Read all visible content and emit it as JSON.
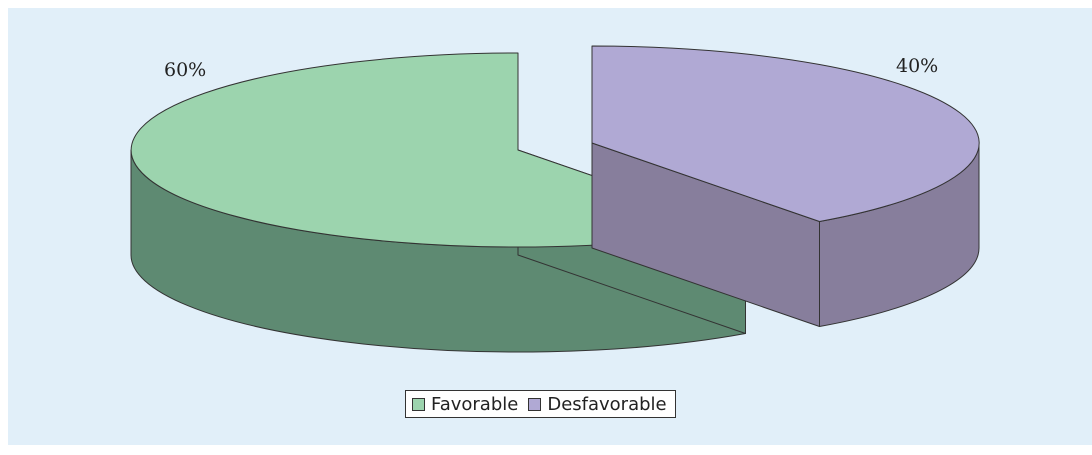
{
  "chart_data": {
    "type": "pie",
    "style": "3d-exploded",
    "categories": [
      "Favorable",
      "Desfavorable"
    ],
    "values": [
      60,
      40
    ],
    "data_labels": [
      "60%",
      "40%"
    ],
    "colors": {
      "Favorable": {
        "top": "#9cd4ae",
        "side": "#5e8a72"
      },
      "Desfavorable": {
        "top": "#b0a9d4",
        "side": "#877e9c"
      }
    },
    "background": "#e1eff9",
    "legend": {
      "position": "bottom",
      "items": [
        {
          "label": "Favorable",
          "color": "#9cd4ae"
        },
        {
          "label": "Desfavorable",
          "color": "#b0a9d4"
        }
      ]
    },
    "title": "",
    "xlabel": "",
    "ylabel": ""
  }
}
